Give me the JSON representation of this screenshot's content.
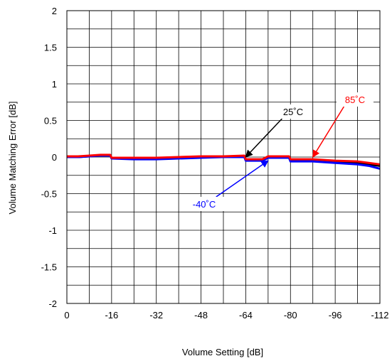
{
  "chart_data": {
    "type": "line",
    "title": "",
    "xlabel": "Volume Setting [dB]",
    "ylabel": "Volume Matching Error [dB]",
    "xlim": [
      0,
      -112
    ],
    "ylim": [
      -2,
      2
    ],
    "x_ticks": [
      "0",
      "-16",
      "-32",
      "-48",
      "-64",
      "-80",
      "-96",
      "-112"
    ],
    "y_ticks": [
      "2",
      "1.5",
      "1",
      "0.5",
      "0",
      "-0.5",
      "-1",
      "-1.5",
      "-2"
    ],
    "grid": true,
    "series": [
      {
        "name": "25˚C",
        "color": "#000000",
        "points": [
          [
            0,
            0.0
          ],
          [
            -4,
            0.0
          ],
          [
            -8,
            0.01
          ],
          [
            -12,
            0.02
          ],
          [
            -15.5,
            0.02
          ],
          [
            -16,
            -0.01
          ],
          [
            -24,
            -0.02
          ],
          [
            -32,
            -0.02
          ],
          [
            -40,
            -0.01
          ],
          [
            -48,
            0.0
          ],
          [
            -56,
            0.0
          ],
          [
            -63.5,
            0.01
          ],
          [
            -64,
            -0.04
          ],
          [
            -70,
            -0.04
          ],
          [
            -72,
            0.0
          ],
          [
            -79.5,
            0.0
          ],
          [
            -80,
            -0.04
          ],
          [
            -88,
            -0.04
          ],
          [
            -96,
            -0.06
          ],
          [
            -104,
            -0.08
          ],
          [
            -108,
            -0.1
          ],
          [
            -112,
            -0.12
          ]
        ]
      },
      {
        "name": "-40˚C",
        "color": "#0000ff",
        "points": [
          [
            0,
            0.0
          ],
          [
            -4,
            0.0
          ],
          [
            -8,
            0.01
          ],
          [
            -12,
            0.02
          ],
          [
            -15.5,
            0.02
          ],
          [
            -16,
            -0.02
          ],
          [
            -24,
            -0.03
          ],
          [
            -32,
            -0.03
          ],
          [
            -40,
            -0.02
          ],
          [
            -48,
            -0.01
          ],
          [
            -56,
            0.0
          ],
          [
            -63.5,
            0.0
          ],
          [
            -64,
            -0.05
          ],
          [
            -70,
            -0.05
          ],
          [
            -72,
            -0.01
          ],
          [
            -79.5,
            -0.01
          ],
          [
            -80,
            -0.06
          ],
          [
            -88,
            -0.06
          ],
          [
            -96,
            -0.08
          ],
          [
            -104,
            -0.1
          ],
          [
            -108,
            -0.12
          ],
          [
            -112,
            -0.16
          ]
        ]
      },
      {
        "name": "85˚C",
        "color": "#ff0000",
        "points": [
          [
            0,
            0.01
          ],
          [
            -4,
            0.01
          ],
          [
            -8,
            0.02
          ],
          [
            -12,
            0.03
          ],
          [
            -15.5,
            0.03
          ],
          [
            -16,
            -0.01
          ],
          [
            -24,
            -0.01
          ],
          [
            -32,
            -0.01
          ],
          [
            -40,
            0.0
          ],
          [
            -48,
            0.01
          ],
          [
            -56,
            0.01
          ],
          [
            -63.5,
            0.02
          ],
          [
            -64,
            -0.03
          ],
          [
            -70,
            -0.03
          ],
          [
            -72,
            0.01
          ],
          [
            -79.5,
            0.01
          ],
          [
            -80,
            -0.03
          ],
          [
            -88,
            -0.03
          ],
          [
            -96,
            -0.05
          ],
          [
            -104,
            -0.06
          ],
          [
            -108,
            -0.08
          ],
          [
            -112,
            -0.1
          ]
        ]
      }
    ],
    "annotations": [
      {
        "text": "25˚C",
        "color": "#000000",
        "arrow_to": [
          -64,
          0.0
        ]
      },
      {
        "text": "85˚C",
        "color": "#ff0000",
        "arrow_to": [
          -88,
          0.0
        ]
      },
      {
        "text": "-40˚C",
        "color": "#0000ff",
        "arrow_to": [
          -72,
          -0.05
        ]
      }
    ]
  }
}
